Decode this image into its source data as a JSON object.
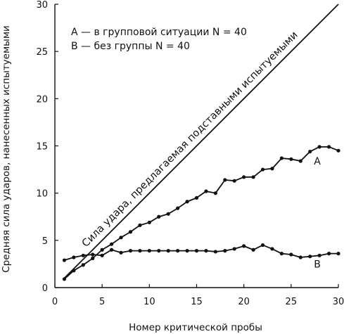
{
  "chart_data": {
    "type": "line",
    "xlabel": "Номер критической пробы",
    "ylabel": "Средняя сила ударов, нанесенных испытуемыми",
    "xlim": [
      0,
      30
    ],
    "ylim": [
      0,
      30
    ],
    "xticks": [
      0,
      5,
      10,
      15,
      20,
      25,
      30
    ],
    "yticks": [
      0,
      5,
      10,
      15,
      20,
      25,
      30
    ],
    "grid": false,
    "legend": {
      "placement": "top-left",
      "entries": [
        "A — в групповой ситуации N = 40",
        "B — без группы N = 40"
      ]
    },
    "reference_line": {
      "label": "Сила удара, предлагаемая подставными испытуемыми",
      "points": [
        [
          1,
          1
        ],
        [
          30,
          30
        ]
      ]
    },
    "series": [
      {
        "name": "A",
        "x": [
          1,
          2,
          3,
          4,
          5,
          6,
          7,
          8,
          9,
          10,
          11,
          12,
          13,
          14,
          15,
          16,
          17,
          18,
          19,
          20,
          21,
          22,
          23,
          24,
          25,
          26,
          27,
          28,
          29,
          30
        ],
        "values": [
          0.9,
          1.8,
          2.4,
          3.1,
          4.0,
          4.6,
          5.3,
          5.9,
          6.6,
          6.9,
          7.5,
          7.8,
          8.4,
          9.1,
          9.5,
          10.2,
          10.0,
          11.4,
          11.3,
          11.7,
          11.7,
          12.5,
          12.6,
          13.7,
          13.6,
          13.4,
          14.4,
          14.9,
          14.9,
          14.5
        ]
      },
      {
        "name": "B",
        "x": [
          1,
          2,
          3,
          4,
          5,
          6,
          7,
          8,
          9,
          10,
          11,
          12,
          13,
          14,
          15,
          16,
          17,
          18,
          19,
          20,
          21,
          22,
          23,
          24,
          25,
          26,
          27,
          28,
          29,
          30
        ],
        "values": [
          2.9,
          3.2,
          3.4,
          3.5,
          3.4,
          4.0,
          3.7,
          3.9,
          3.9,
          3.9,
          3.9,
          3.9,
          3.9,
          3.9,
          3.9,
          3.9,
          3.8,
          3.9,
          4.1,
          4.4,
          4.0,
          4.5,
          4.1,
          3.6,
          3.5,
          3.2,
          3.3,
          3.4,
          3.6,
          3.6
        ]
      }
    ]
  }
}
